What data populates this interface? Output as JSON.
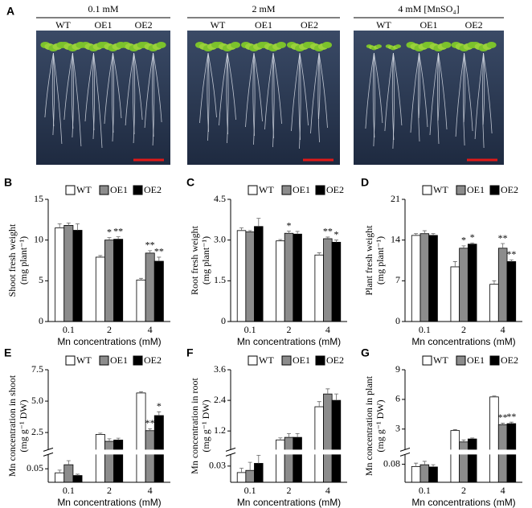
{
  "photo_panel": {
    "panel": "A",
    "groups": [
      {
        "title": "0.1 mM",
        "lines": [
          "WT",
          "OE1",
          "OE2"
        ]
      },
      {
        "title": "2 mM",
        "lines": [
          "WT",
          "OE1",
          "OE2"
        ]
      },
      {
        "title": "4 mM [MnSO₄]",
        "lines": [
          "WT",
          "OE1",
          "OE2"
        ]
      }
    ]
  },
  "chart_data": [
    {
      "type": "bar",
      "panel": "B",
      "ylabel": [
        "Shoot fresh weight",
        "(mg plant⁻¹)"
      ],
      "xlabel": "Mn concentrations (mM)",
      "categories": [
        "0.1",
        "2",
        "4"
      ],
      "ylim": [
        0,
        15
      ],
      "yticks": [
        0,
        5,
        10,
        15
      ],
      "series": [
        {
          "name": "WT",
          "color": "#ffffff",
          "values": [
            11.5,
            7.9,
            5.1
          ],
          "errors": [
            0.5,
            0.2,
            0.2
          ],
          "significance": [
            null,
            null,
            null
          ]
        },
        {
          "name": "OE1",
          "color": "#8c8c8c",
          "values": [
            11.8,
            10.0,
            8.4
          ],
          "errors": [
            0.3,
            0.3,
            0.3
          ],
          "significance": [
            null,
            "*",
            "**"
          ]
        },
        {
          "name": "OE2",
          "color": "#000000",
          "values": [
            11.2,
            10.1,
            7.4
          ],
          "errors": [
            0.8,
            0.3,
            0.5
          ],
          "significance": [
            null,
            "**",
            "**"
          ]
        }
      ]
    },
    {
      "type": "bar",
      "panel": "C",
      "ylabel": [
        "Root fresh weight",
        "(mg plant⁻¹)"
      ],
      "xlabel": "Mn concentrations (mM)",
      "categories": [
        "0.1",
        "2",
        "4"
      ],
      "ylim": [
        0,
        4.5
      ],
      "yticks": [
        0,
        1.5,
        {
          "value": 3,
          "label": "3.0"
        },
        4.5
      ],
      "series": [
        {
          "name": "WT",
          "color": "#ffffff",
          "values": [
            3.35,
            2.97,
            2.45
          ],
          "errors": [
            0.1,
            0.05,
            0.08
          ],
          "significance": [
            null,
            null,
            null
          ]
        },
        {
          "name": "OE1",
          "color": "#8c8c8c",
          "values": [
            3.3,
            3.25,
            3.05
          ],
          "errors": [
            0.05,
            0.08,
            0.06
          ],
          "significance": [
            null,
            "*",
            "**"
          ]
        },
        {
          "name": "OE2",
          "color": "#000000",
          "values": [
            3.5,
            3.22,
            2.92
          ],
          "errors": [
            0.3,
            0.1,
            0.08
          ],
          "significance": [
            null,
            null,
            "*"
          ]
        }
      ]
    },
    {
      "type": "bar",
      "panel": "D",
      "ylabel": [
        "Plant fresh weight",
        "(mg plant⁻¹)"
      ],
      "xlabel": "Mn concentrations (mM)",
      "categories": [
        "0.1",
        "2",
        "4"
      ],
      "ylim": [
        0,
        21
      ],
      "yticks": [
        0,
        7,
        14,
        21
      ],
      "series": [
        {
          "name": "WT",
          "color": "#ffffff",
          "values": [
            14.8,
            9.4,
            6.4
          ],
          "errors": [
            0.3,
            0.9,
            0.6
          ],
          "significance": [
            null,
            null,
            null
          ]
        },
        {
          "name": "OE1",
          "color": "#8c8c8c",
          "values": [
            15.1,
            12.6,
            12.6
          ],
          "errors": [
            0.5,
            0.4,
            0.8
          ],
          "significance": [
            null,
            "*",
            "**"
          ]
        },
        {
          "name": "OE2",
          "color": "#000000",
          "values": [
            14.8,
            13.3,
            10.3
          ],
          "errors": [
            0.3,
            0.2,
            0.3
          ],
          "significance": [
            null,
            "*",
            "**"
          ]
        }
      ]
    },
    {
      "type": "bar",
      "panel": "E",
      "ylabel": [
        "Mn concentration in shoot",
        "(mg g⁻¹ DW)"
      ],
      "xlabel": "Mn concentrations (mM)",
      "categories": [
        "0.1",
        "2",
        "4"
      ],
      "ylim": [
        0,
        7.5
      ],
      "ybreak": [
        0.1,
        1.2
      ],
      "yticks": [
        0.05,
        2.5,
        {
          "value": 5,
          "label": "5.0"
        },
        7.5
      ],
      "series": [
        {
          "name": "WT",
          "color": "#ffffff",
          "values": [
            0.035,
            2.35,
            5.65
          ],
          "errors": [
            0.01,
            0.1,
            0.1
          ],
          "significance": [
            null,
            null,
            null
          ]
        },
        {
          "name": "OE1",
          "color": "#8c8c8c",
          "values": [
            0.065,
            1.8,
            2.65
          ],
          "errors": [
            0.015,
            0.2,
            0.15
          ],
          "significance": [
            null,
            null,
            "**"
          ]
        },
        {
          "name": "OE2",
          "color": "#000000",
          "values": [
            0.025,
            1.9,
            3.85
          ],
          "errors": [
            0.005,
            0.15,
            0.3
          ],
          "significance": [
            null,
            null,
            "*"
          ]
        }
      ]
    },
    {
      "type": "bar",
      "panel": "F",
      "ylabel": [
        "Mn concentration in root",
        "(mg g⁻¹ DW)"
      ],
      "xlabel": "Mn concentrations (mM)",
      "categories": [
        "0.1",
        "2",
        "4"
      ],
      "ylim": [
        0,
        3.6
      ],
      "ybreak": [
        0.05,
        0.5
      ],
      "yticks": [
        0.03,
        1.2,
        2.4,
        3.6
      ],
      "series": [
        {
          "name": "WT",
          "color": "#ffffff",
          "values": [
            0.018,
            0.85,
            2.15
          ],
          "errors": [
            0.008,
            0.08,
            0.2
          ],
          "significance": [
            null,
            null,
            null
          ]
        },
        {
          "name": "OE1",
          "color": "#8c8c8c",
          "values": [
            0.022,
            0.95,
            2.65
          ],
          "errors": [
            0.015,
            0.15,
            0.2
          ],
          "significance": [
            null,
            null,
            null
          ]
        },
        {
          "name": "OE2",
          "color": "#000000",
          "values": [
            0.035,
            0.95,
            2.4
          ],
          "errors": [
            0.015,
            0.15,
            0.25
          ],
          "significance": [
            null,
            null,
            null
          ]
        }
      ]
    },
    {
      "type": "bar",
      "panel": "G",
      "ylabel": [
        "Mn concentration in plant",
        "(mg g⁻¹ DW)"
      ],
      "xlabel": "Mn concentrations (mM)",
      "categories": [
        "0.1",
        "2",
        "4"
      ],
      "ylim": [
        0,
        9
      ],
      "ybreak": [
        0.12,
        1
      ],
      "yticks": [
        0.08,
        3,
        6,
        9
      ],
      "series": [
        {
          "name": "WT",
          "color": "#ffffff",
          "values": [
            0.07,
            2.85,
            6.25
          ],
          "errors": [
            0.015,
            0.1,
            0.1
          ],
          "significance": [
            null,
            null,
            null
          ]
        },
        {
          "name": "OE1",
          "color": "#8c8c8c",
          "values": [
            0.078,
            1.7,
            3.45
          ],
          "errors": [
            0.015,
            0.2,
            0.15
          ],
          "significance": [
            null,
            null,
            "**"
          ]
        },
        {
          "name": "OE2",
          "color": "#000000",
          "values": [
            0.068,
            2.0,
            3.55
          ],
          "errors": [
            0.01,
            0.1,
            0.15
          ],
          "significance": [
            null,
            null,
            "**"
          ]
        }
      ]
    }
  ]
}
